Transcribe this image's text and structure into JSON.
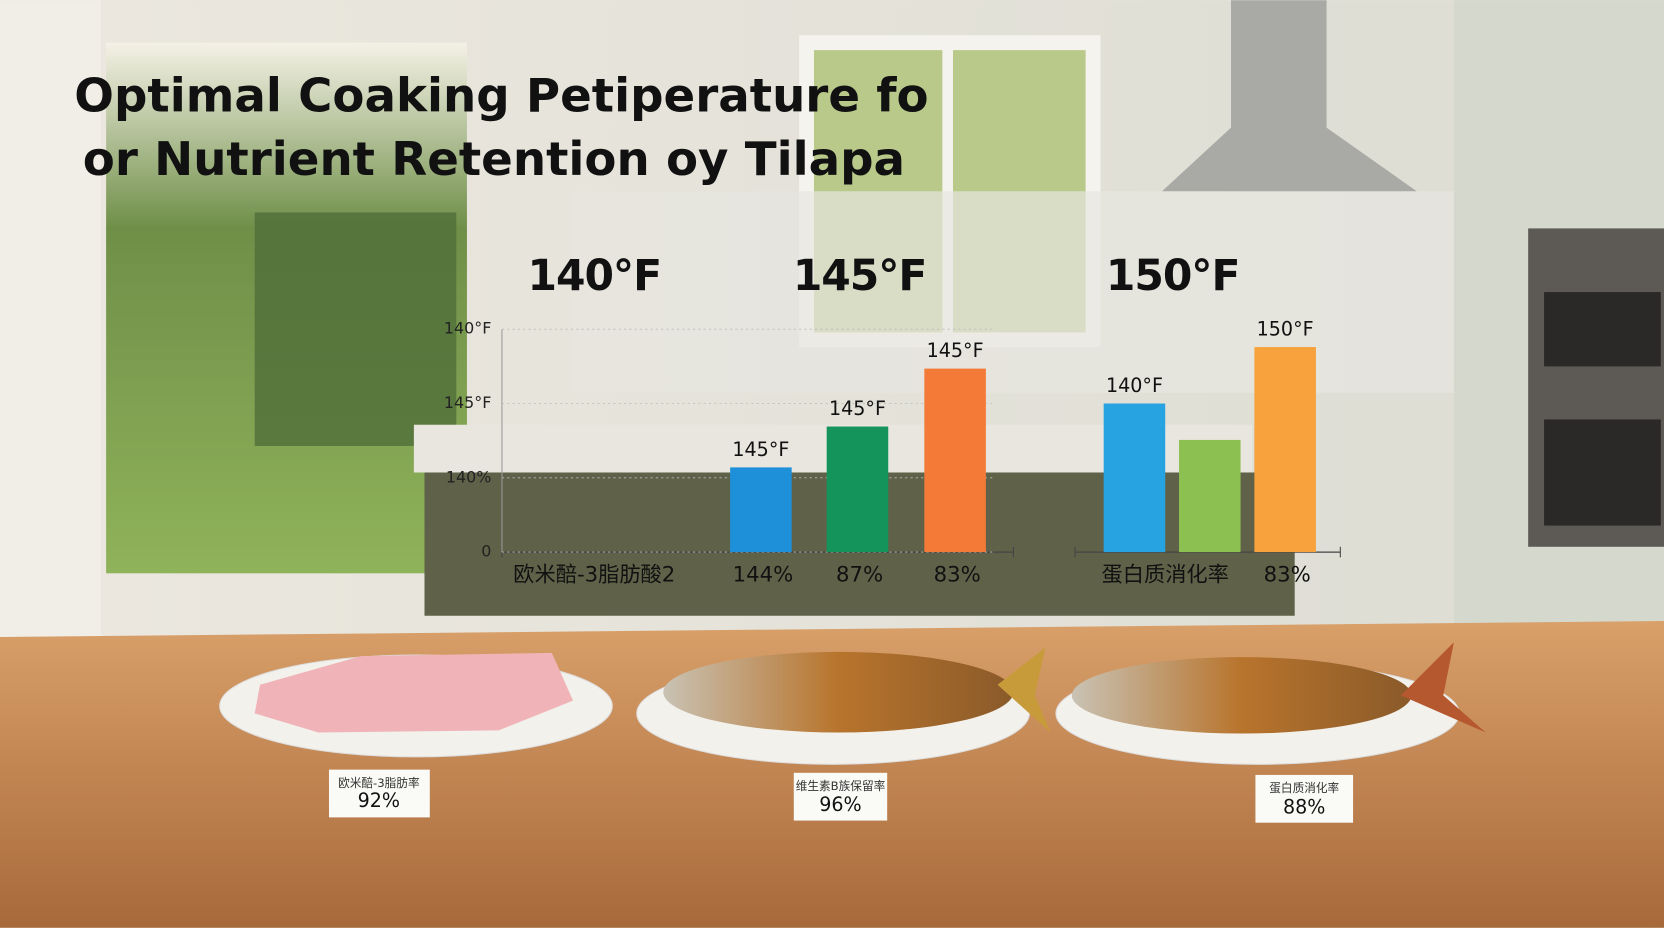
{
  "title_lines": [
    "Optimal Coaking Petiperature fo",
    "or Nutrient Retention oy Tilapa"
  ],
  "headings": [
    "140°F",
    "145°F",
    "150°F"
  ],
  "chart_data": [
    {
      "type": "bar",
      "group_label": "欧米醅-3脂肪酸2",
      "categories": [
        "144%",
        "87%",
        "83%"
      ],
      "values": [
        1.14,
        1.69,
        2.47
      ],
      "colors": [
        "#1e8fd9",
        "#14945a",
        "#f47a38"
      ],
      "bar_labels": [
        "145°F",
        "145°F",
        "145°F"
      ],
      "ylim": [
        0,
        3
      ],
      "yticks": [
        0,
        {
          "value": 1,
          "label": "140%"
        },
        {
          "value": 2,
          "label": "145°F"
        },
        {
          "value": 3,
          "label": "140°F"
        }
      ]
    },
    {
      "type": "bar",
      "group_label": "蛋白质消化率",
      "categories": [
        null,
        null,
        "83%"
      ],
      "values": [
        2.0,
        1.51,
        2.76
      ],
      "colors": [
        "#28a3e2",
        "#8cc152",
        "#f7a23c"
      ],
      "bar_labels": [
        "140°F",
        null,
        "150°F"
      ],
      "ylim": [
        0,
        3
      ]
    }
  ],
  "cards": [
    {
      "label": "欧米醅-3脂肪率",
      "value": "92%"
    },
    {
      "label": "维生素B族保留率",
      "value": "96%"
    },
    {
      "label": "蛋白质消化率",
      "value": "88%"
    }
  ]
}
